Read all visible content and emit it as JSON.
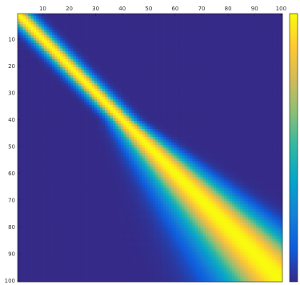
{
  "chart_data": {
    "type": "heatmap",
    "title": "",
    "xlabel": "",
    "ylabel": "",
    "colormap": "parula",
    "colormap_stops": [
      "#352a87",
      "#0f5cdd",
      "#1481d6",
      "#06a4ca",
      "#2eb7a4",
      "#87bf77",
      "#d1bb59",
      "#fec832",
      "#f9fb0e"
    ],
    "x_axis": {
      "position": "top",
      "range": [
        1,
        100
      ],
      "ticks": [
        10,
        20,
        30,
        40,
        50,
        60,
        70,
        80,
        90,
        100
      ]
    },
    "y_axis": {
      "position": "left",
      "range": [
        1,
        100
      ],
      "reversed": true,
      "ticks": [
        10,
        20,
        30,
        40,
        50,
        60,
        70,
        80,
        90,
        100
      ]
    },
    "grid": false,
    "colorbar": {
      "position": "right",
      "tick_labels": false
    },
    "matrix_size": [
      100,
      100
    ],
    "description_of_values": "Band along the diagonal; narrow (half-width ~3) from row 1 to ~40, then spreading wider with half-width growing to ~14 near row 100; values 0 (dark blue) to 1 (yellow)."
  }
}
